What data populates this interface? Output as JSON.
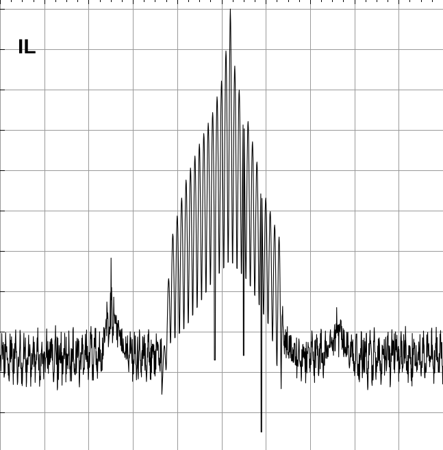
{
  "panel_label": "IL",
  "colors": {
    "trace": "#000000",
    "grid": "#999999",
    "background": "#ffffff"
  },
  "chart_data": {
    "type": "line",
    "title": "IL",
    "xlabel": "",
    "ylabel": "",
    "grid": true,
    "xlim": [
      0,
      100
    ],
    "ylim": [
      0,
      100
    ],
    "grid_divisions": {
      "x": 10,
      "y": 11
    },
    "envelope": {
      "x": [
        0,
        5,
        10,
        15,
        20,
        23,
        24.5,
        25.5,
        27,
        30,
        36.5,
        37.5,
        38.5,
        40,
        42,
        45,
        48,
        50,
        51.5,
        52,
        52.5,
        54,
        56,
        58,
        60,
        62,
        63.5,
        64,
        66,
        70,
        73,
        75,
        76.5,
        77.5,
        79,
        82,
        86,
        90,
        95,
        100
      ],
      "y": [
        16,
        13,
        14,
        12,
        14,
        16,
        40,
        49,
        26,
        13,
        16,
        29,
        46,
        52,
        60,
        68,
        75,
        82,
        92,
        98,
        88,
        80,
        73,
        64,
        56,
        50,
        46,
        26,
        16,
        14,
        16,
        23,
        36,
        24,
        16,
        12,
        14,
        13,
        15,
        14
      ]
    },
    "fill_floor": [
      0,
      20,
      8
    ],
    "notch_floor": {
      "x": [
        36.5,
        38.5,
        42,
        48,
        52,
        56,
        61,
        63.5
      ],
      "y": [
        12,
        23,
        26,
        36,
        40,
        36,
        26,
        12
      ]
    },
    "dips": [
      {
        "x": 59,
        "y": 4
      },
      {
        "x": 48.5,
        "y": 20
      },
      {
        "x": 55,
        "y": 21
      }
    ],
    "oscillation_period": 1.0
  }
}
